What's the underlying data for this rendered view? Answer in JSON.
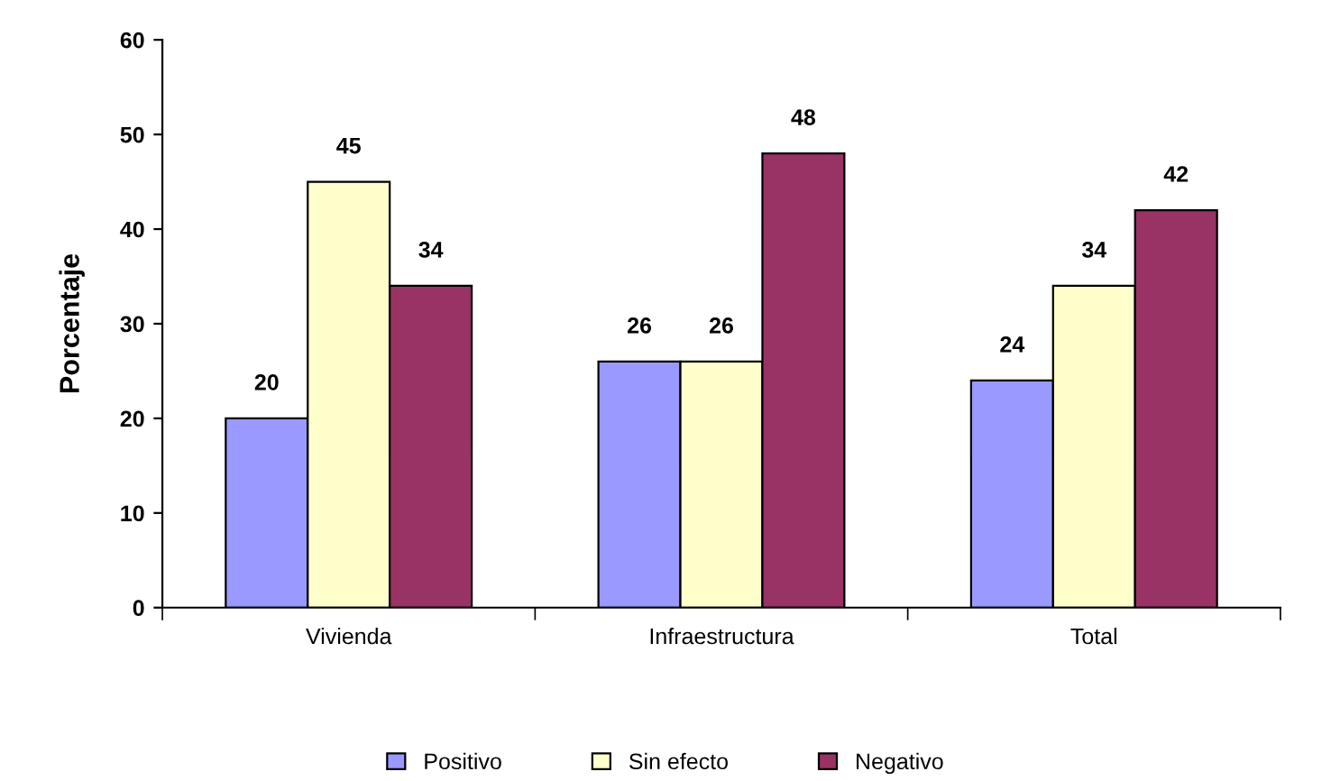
{
  "chart_data": {
    "type": "bar",
    "ylabel": "Porcentaje",
    "categories": [
      "Vivienda",
      "Infraestructura",
      "Total"
    ],
    "series": [
      {
        "name": "Positivo",
        "color": "#9999ff",
        "values": [
          20,
          26,
          24
        ]
      },
      {
        "name": "Sin efecto",
        "color": "#ffffcc",
        "values": [
          45,
          26,
          34
        ]
      },
      {
        "name": "Negativo",
        "color": "#993366",
        "values": [
          34,
          48,
          42
        ]
      }
    ],
    "ylim": [
      0,
      60
    ],
    "yticks": [
      0,
      10,
      20,
      30,
      40,
      50,
      60
    ],
    "grid": false,
    "legend": "bottom",
    "data_labels": true
  }
}
